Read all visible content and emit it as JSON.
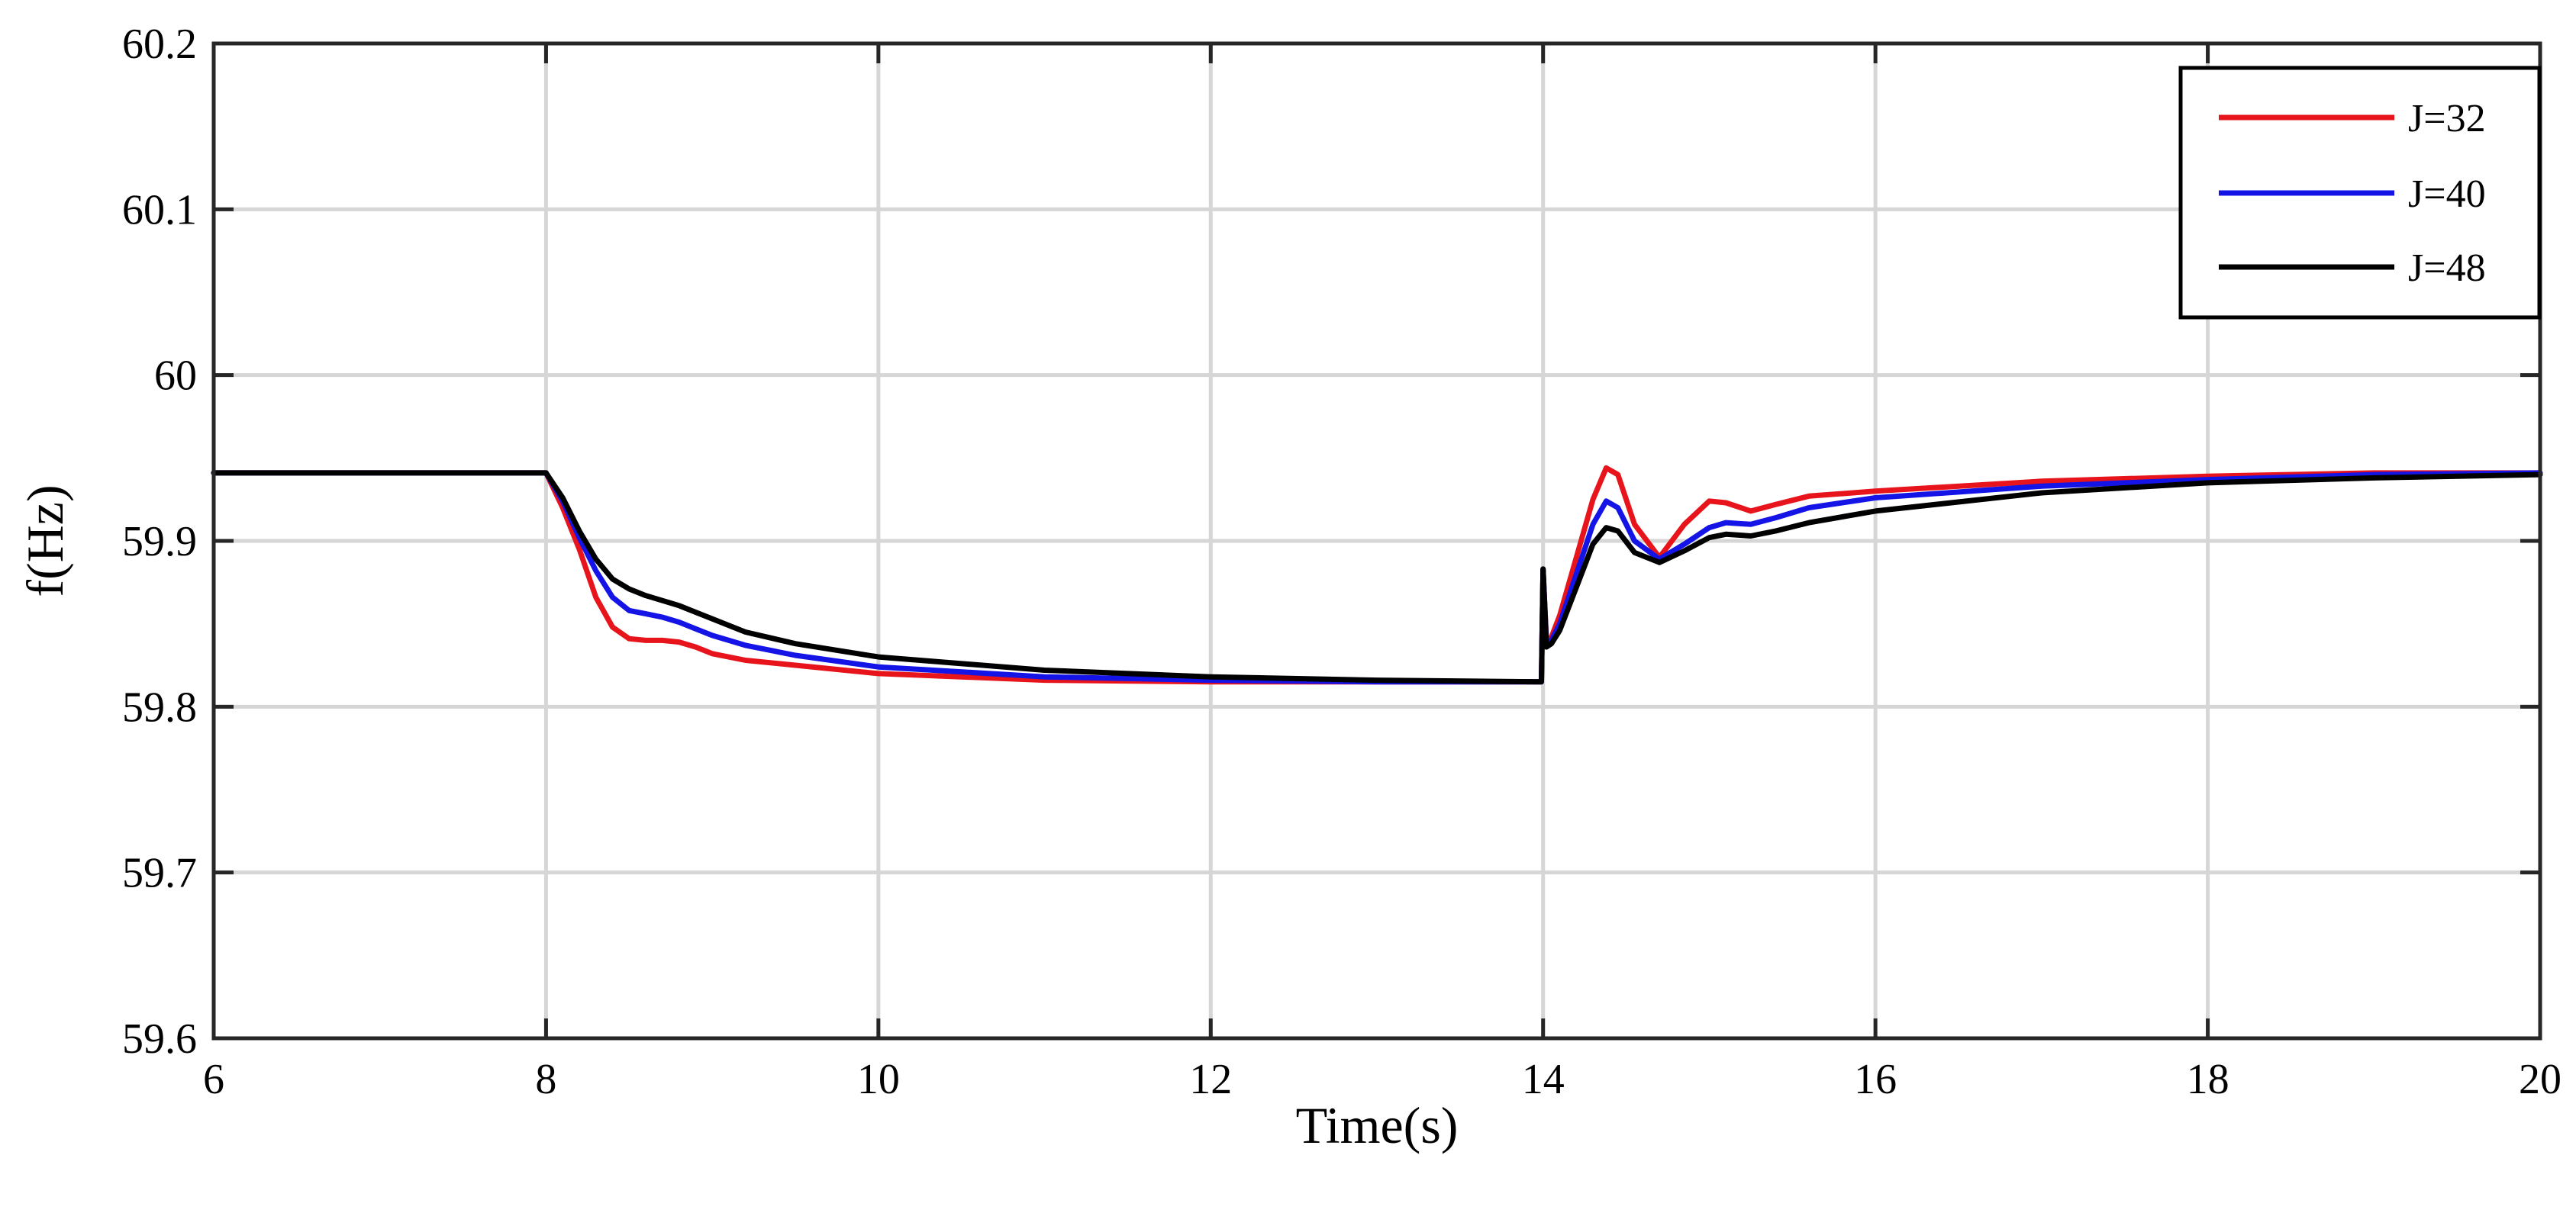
{
  "chart_data": {
    "type": "line",
    "title": "",
    "xlabel": "Time(s)",
    "ylabel": "f(Hz)",
    "xlim": [
      6,
      20
    ],
    "ylim": [
      59.6,
      60.2
    ],
    "xticks": [
      6,
      8,
      10,
      12,
      14,
      16,
      18,
      20
    ],
    "yticks": [
      59.6,
      59.7,
      59.8,
      59.9,
      60,
      60.1,
      60.2
    ],
    "xtick_labels": [
      "6",
      "8",
      "10",
      "12",
      "14",
      "16",
      "18",
      "20"
    ],
    "ytick_labels": [
      "59.6",
      "59.7",
      "59.8",
      "59.9",
      "60",
      "60.1",
      "60.2"
    ],
    "grid": true,
    "legend_position": "top-right",
    "series": [
      {
        "name": "J=32",
        "color": "#e8141c",
        "x": [
          6,
          8,
          8.1,
          8.2,
          8.3,
          8.4,
          8.5,
          8.6,
          8.7,
          8.8,
          8.9,
          9.0,
          9.2,
          9.5,
          10,
          11,
          12,
          13,
          13.99,
          14.0,
          14.02,
          14.05,
          14.1,
          14.2,
          14.3,
          14.38,
          14.45,
          14.55,
          14.7,
          14.85,
          15.0,
          15.1,
          15.25,
          15.4,
          15.6,
          16,
          17,
          18,
          19,
          20
        ],
        "values": [
          59.941,
          59.941,
          59.92,
          59.895,
          59.866,
          59.848,
          59.841,
          59.84,
          59.84,
          59.839,
          59.836,
          59.832,
          59.828,
          59.825,
          59.82,
          59.816,
          59.815,
          59.815,
          59.815,
          59.883,
          59.84,
          59.842,
          59.855,
          59.89,
          59.925,
          59.944,
          59.94,
          59.91,
          59.89,
          59.91,
          59.924,
          59.923,
          59.918,
          59.922,
          59.927,
          59.93,
          59.936,
          59.939,
          59.941,
          59.941
        ]
      },
      {
        "name": "J=40",
        "color": "#1414e6",
        "x": [
          6,
          8,
          8.1,
          8.2,
          8.3,
          8.4,
          8.5,
          8.6,
          8.7,
          8.8,
          8.9,
          9.0,
          9.2,
          9.5,
          10,
          11,
          12,
          13,
          13.99,
          14.0,
          14.02,
          14.05,
          14.1,
          14.2,
          14.3,
          14.38,
          14.45,
          14.55,
          14.7,
          14.85,
          15.0,
          15.1,
          15.25,
          15.4,
          15.6,
          16,
          17,
          18,
          19,
          20
        ],
        "values": [
          59.941,
          59.941,
          59.924,
          59.902,
          59.882,
          59.866,
          59.858,
          59.856,
          59.854,
          59.851,
          59.847,
          59.843,
          59.837,
          59.831,
          59.824,
          59.818,
          59.816,
          59.815,
          59.815,
          59.883,
          59.838,
          59.84,
          59.85,
          59.88,
          59.91,
          59.924,
          59.92,
          59.9,
          59.889,
          59.898,
          59.908,
          59.911,
          59.91,
          59.914,
          59.92,
          59.926,
          59.933,
          59.937,
          59.94,
          59.941
        ]
      },
      {
        "name": "J=48",
        "color": "#000000",
        "x": [
          6,
          8,
          8.1,
          8.2,
          8.3,
          8.4,
          8.5,
          8.6,
          8.7,
          8.8,
          8.9,
          9.0,
          9.2,
          9.5,
          10,
          11,
          12,
          13,
          13.99,
          14.0,
          14.02,
          14.05,
          14.1,
          14.2,
          14.3,
          14.38,
          14.45,
          14.55,
          14.7,
          14.85,
          15.0,
          15.1,
          15.25,
          15.4,
          15.6,
          16,
          17,
          18,
          19,
          20
        ],
        "values": [
          59.941,
          59.941,
          59.926,
          59.906,
          59.889,
          59.877,
          59.871,
          59.867,
          59.864,
          59.861,
          59.857,
          59.853,
          59.845,
          59.838,
          59.83,
          59.822,
          59.818,
          59.816,
          59.815,
          59.883,
          59.836,
          59.838,
          59.846,
          59.872,
          59.898,
          59.908,
          59.906,
          59.893,
          59.887,
          59.894,
          59.902,
          59.904,
          59.903,
          59.906,
          59.911,
          59.918,
          59.929,
          59.935,
          59.938,
          59.94
        ]
      }
    ]
  }
}
